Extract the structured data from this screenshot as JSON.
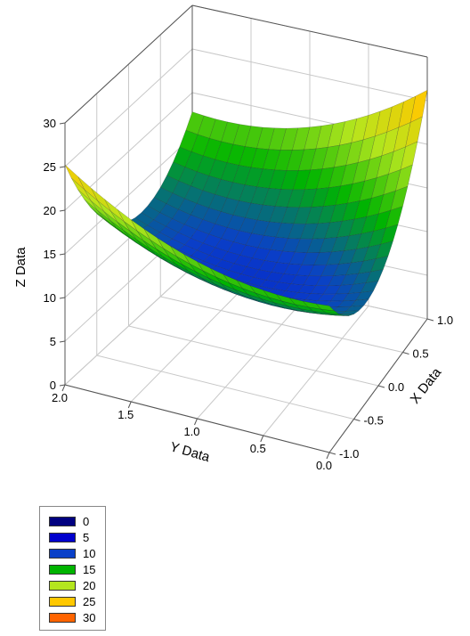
{
  "chart_data": {
    "type": "surface",
    "xlabel": "X Data",
    "ylabel": "Y Data",
    "zlabel": "Z Data",
    "x_range": [
      -1.0,
      1.0
    ],
    "y_range": [
      0.0,
      2.0
    ],
    "z_range": [
      0,
      30
    ],
    "x_ticks": [
      "-1.0",
      "-0.5",
      "0.0",
      "0.5",
      "1.0"
    ],
    "y_ticks": [
      "0.0",
      "0.5",
      "1.0",
      "1.5",
      "2.0"
    ],
    "z_ticks": [
      "0",
      "5",
      "10",
      "15",
      "20",
      "25",
      "30"
    ],
    "grid": true,
    "surface_samples": {
      "description_corners": [
        {
          "x": -1.0,
          "y": 2.0,
          "z": 25
        },
        {
          "x": 1.0,
          "y": 0.0,
          "z": 27
        },
        {
          "x": 1.0,
          "y": 2.0,
          "z": 19
        },
        {
          "x": -1.0,
          "y": 0.0,
          "z": 18
        },
        {
          "x": 0.0,
          "y": 1.0,
          "z": 9
        }
      ]
    },
    "legend": {
      "placement": "bottom-left",
      "entries": [
        {
          "label": "0",
          "color": "#000080"
        },
        {
          "label": "5",
          "color": "#0000cd"
        },
        {
          "label": "10",
          "color": "#0a40c8"
        },
        {
          "label": "15",
          "color": "#00b400"
        },
        {
          "label": "20",
          "color": "#b4e61e"
        },
        {
          "label": "25",
          "color": "#ffc800"
        },
        {
          "label": "30",
          "color": "#ff6400"
        }
      ]
    }
  }
}
